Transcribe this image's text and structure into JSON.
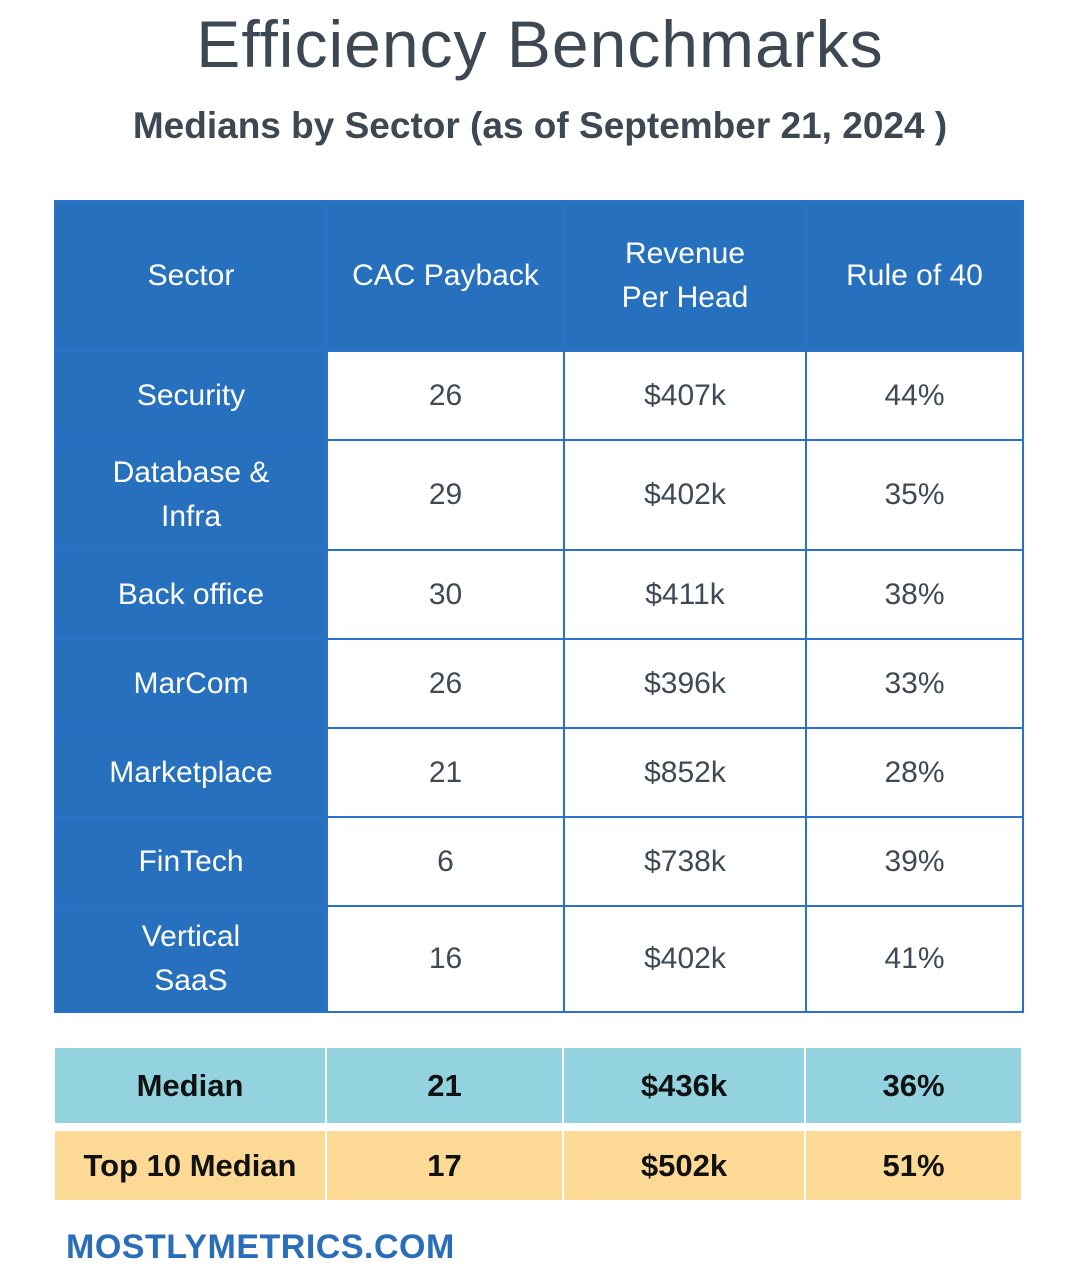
{
  "title": "Efficiency Benchmarks",
  "subtitle": "Medians by Sector (as of September 21, 2024 )",
  "table": {
    "headers": [
      "Sector",
      "CAC Payback",
      "Revenue Per Head",
      "Rule of 40"
    ],
    "rows": [
      {
        "sector": "Security",
        "cac": "26",
        "rev": "$407k",
        "rule": "44%"
      },
      {
        "sector": "Database & Infra",
        "cac": "29",
        "rev": "$402k",
        "rule": "35%"
      },
      {
        "sector": "Back office",
        "cac": "30",
        "rev": "$411k",
        "rule": "38%"
      },
      {
        "sector": "MarCom",
        "cac": "26",
        "rev": "$396k",
        "rule": "33%"
      },
      {
        "sector": "Marketplace",
        "cac": "21",
        "rev": "$852k",
        "rule": "28%"
      },
      {
        "sector": "FinTech",
        "cac": "6",
        "rev": "$738k",
        "rule": "39%"
      },
      {
        "sector": "Vertical SaaS",
        "cac": "16",
        "rev": "$402k",
        "rule": "41%"
      }
    ]
  },
  "summary": {
    "median": {
      "label": "Median",
      "cac": "21",
      "rev": "$436k",
      "rule": "36%"
    },
    "top10": {
      "label": "Top 10 Median",
      "cac": "17",
      "rev": "$502k",
      "rule": "51%"
    }
  },
  "footer": "MOSTLYMETRICS.COM",
  "colors": {
    "header_blue": "#2670be",
    "median_row": "#93d3e0",
    "top10_row": "#fcd994",
    "footer_blue": "#2a6db8"
  }
}
